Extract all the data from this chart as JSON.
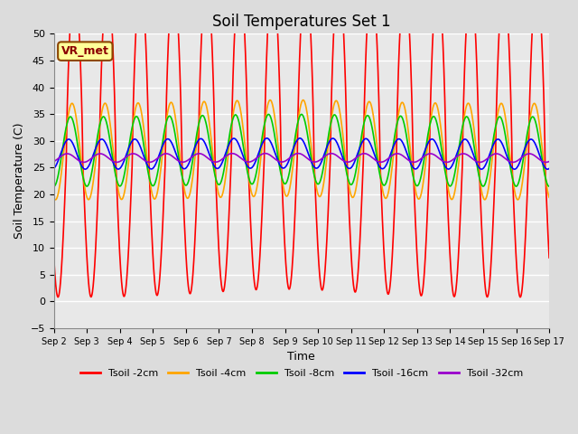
{
  "title": "Soil Temperatures Set 1",
  "xlabel": "Time",
  "ylabel": "Soil Temperature (C)",
  "ylim": [
    -5,
    50
  ],
  "yticks": [
    -5,
    0,
    5,
    10,
    15,
    20,
    25,
    30,
    35,
    40,
    45,
    50
  ],
  "n_days": 15,
  "annotation": "VR_met",
  "series": [
    {
      "label": "Tsoil -2cm",
      "color": "#FF0000"
    },
    {
      "label": "Tsoil -4cm",
      "color": "#FFA500"
    },
    {
      "label": "Tsoil -8cm",
      "color": "#00CC00"
    },
    {
      "label": "Tsoil -16cm",
      "color": "#0000FF"
    },
    {
      "label": "Tsoil -32cm",
      "color": "#9900CC"
    }
  ],
  "fig_bg": "#DCDCDC",
  "ax_bg": "#E8E8E8",
  "grid_color": "#FFFFFF",
  "title_fontsize": 12,
  "annot_facecolor": "#FFFF99",
  "annot_edgecolor": "#8B4500",
  "annot_textcolor": "#8B0000"
}
